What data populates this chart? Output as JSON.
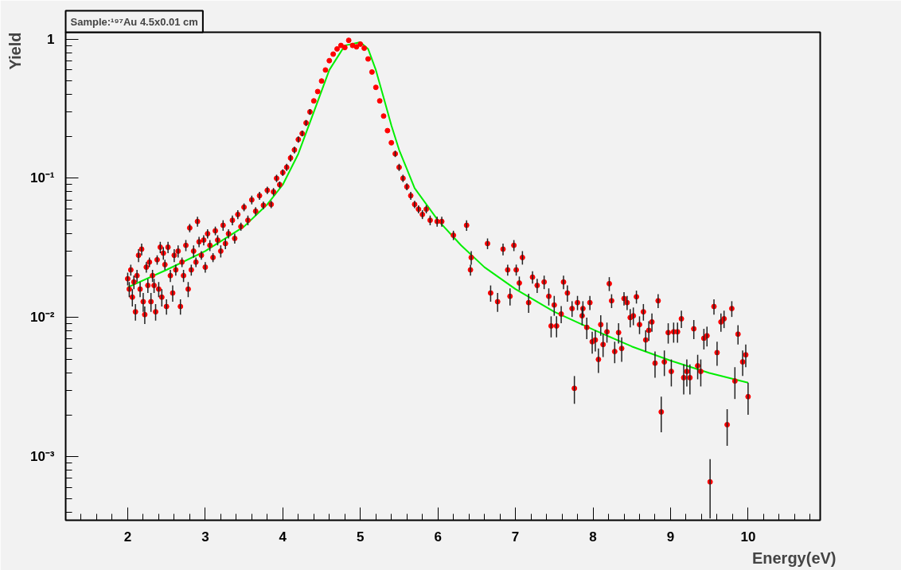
{
  "chart_data": {
    "type": "scatter",
    "title": "Sample:¹⁹⁷Au 4.5x0.01 cm",
    "xlabel": "Energy(eV)",
    "ylabel": "Yield",
    "log": "y",
    "grid": false,
    "xlim": [
      1.2,
      10.93
    ],
    "ylim": [
      0.00035,
      1.12
    ],
    "xticks": [
      2,
      3,
      4,
      5,
      6,
      7,
      8,
      9,
      10
    ],
    "yticks": [
      {
        "value": 0.001,
        "label": "10⁻³"
      },
      {
        "value": 0.01,
        "label": "10⁻²"
      },
      {
        "value": 0.1,
        "label": "10⁻¹"
      },
      1
    ],
    "series": [
      {
        "marker": "circle",
        "color": "#ff0000",
        "x": [
          2.0,
          2.02,
          2.04,
          2.06,
          2.08,
          2.1,
          2.12,
          2.14,
          2.16,
          2.18,
          2.2,
          2.22,
          2.24,
          2.26,
          2.28,
          2.3,
          2.32,
          2.34,
          2.36,
          2.38,
          2.4,
          2.42,
          2.44,
          2.46,
          2.48,
          2.5,
          2.52,
          2.55,
          2.58,
          2.6,
          2.62,
          2.65,
          2.68,
          2.7,
          2.72,
          2.75,
          2.78,
          2.8,
          2.82,
          2.85,
          2.88,
          2.9,
          2.92,
          2.95,
          2.98,
          3.0,
          3.03,
          3.06,
          3.1,
          3.13,
          3.16,
          3.2,
          3.23,
          3.26,
          3.3,
          3.35,
          3.38,
          3.42,
          3.46,
          3.5,
          3.55,
          3.6,
          3.65,
          3.7,
          3.75,
          3.8,
          3.85,
          3.88,
          3.92,
          3.96,
          4.0,
          4.05,
          4.1,
          4.15,
          4.2,
          4.25,
          4.3,
          4.35,
          4.4,
          4.45,
          4.5,
          4.55,
          4.6,
          4.65,
          4.7,
          4.75,
          4.8,
          4.85,
          4.9,
          4.95,
          5.0,
          5.05,
          5.1,
          5.15,
          5.2,
          5.25,
          5.3,
          5.35,
          5.4,
          5.45,
          5.5,
          5.55,
          5.6,
          5.65,
          5.7,
          5.75,
          5.8,
          5.85,
          5.9,
          5.99,
          6.05,
          6.2,
          6.37,
          6.43,
          6.42,
          6.64,
          6.68,
          6.77,
          6.84,
          6.9,
          6.93,
          6.98,
          7.01,
          7.05,
          7.09,
          7.17,
          7.22,
          7.28,
          7.37,
          7.43,
          7.46,
          7.53,
          7.5,
          7.59,
          7.62,
          7.67,
          7.73,
          7.76,
          7.8,
          7.86,
          7.87,
          7.92,
          7.96,
          7.99,
          8.03,
          8.07,
          8.1,
          8.13,
          8.18,
          8.21,
          8.24,
          8.28,
          8.33,
          8.37,
          8.4,
          8.44,
          8.48,
          8.52,
          8.56,
          8.6,
          8.65,
          8.68,
          8.72,
          8.76,
          8.8,
          8.84,
          8.88,
          8.92,
          8.97,
          9.01,
          9.04,
          9.09,
          9.14,
          9.17,
          9.21,
          9.25,
          9.3,
          9.35,
          9.39,
          9.43,
          9.47,
          9.51,
          9.56,
          9.6,
          9.65,
          9.69,
          9.73,
          9.79,
          9.83,
          9.87,
          9.93,
          9.97,
          10.0
        ],
        "values": [
          0.019,
          0.016,
          0.022,
          0.014,
          0.018,
          0.011,
          0.02,
          0.028,
          0.016,
          0.031,
          0.013,
          0.0105,
          0.023,
          0.017,
          0.025,
          0.013,
          0.02,
          0.017,
          0.011,
          0.026,
          0.016,
          0.032,
          0.014,
          0.029,
          0.024,
          0.012,
          0.032,
          0.02,
          0.015,
          0.028,
          0.022,
          0.03,
          0.012,
          0.025,
          0.02,
          0.033,
          0.016,
          0.044,
          0.022,
          0.03,
          0.025,
          0.049,
          0.035,
          0.028,
          0.036,
          0.023,
          0.04,
          0.033,
          0.027,
          0.042,
          0.036,
          0.03,
          0.046,
          0.034,
          0.04,
          0.05,
          0.037,
          0.055,
          0.045,
          0.062,
          0.05,
          0.07,
          0.058,
          0.075,
          0.064,
          0.082,
          0.065,
          0.08,
          0.1,
          0.09,
          0.11,
          0.12,
          0.14,
          0.16,
          0.19,
          0.21,
          0.25,
          0.3,
          0.36,
          0.42,
          0.5,
          0.6,
          0.7,
          0.78,
          0.85,
          0.9,
          0.87,
          0.98,
          0.9,
          0.88,
          0.92,
          0.86,
          0.72,
          0.58,
          0.45,
          0.36,
          0.28,
          0.22,
          0.18,
          0.15,
          0.12,
          0.1,
          0.087,
          0.075,
          0.065,
          0.06,
          0.055,
          0.06,
          0.05,
          0.049,
          0.049,
          0.039,
          0.046,
          0.027,
          0.022,
          0.034,
          0.015,
          0.013,
          0.031,
          0.022,
          0.0142,
          0.033,
          0.022,
          0.0177,
          0.027,
          0.0128,
          0.0195,
          0.017,
          0.018,
          0.0142,
          0.0087,
          0.0087,
          0.0123,
          0.0106,
          0.018,
          0.015,
          0.0116,
          0.0031,
          0.0128,
          0.0103,
          0.0116,
          0.0085,
          0.0128,
          0.0067,
          0.0069,
          0.005,
          0.0089,
          0.0064,
          0.0079,
          0.0175,
          0.0132,
          0.0057,
          0.0078,
          0.006,
          0.0137,
          0.0128,
          0.01,
          0.0103,
          0.0141,
          0.0089,
          0.011,
          0.0069,
          0.0081,
          0.0093,
          0.0047,
          0.0132,
          0.0021,
          0.0048,
          0.0078,
          0.0041,
          0.0079,
          0.0079,
          0.0098,
          0.0037,
          0.0041,
          0.0037,
          0.0083,
          0.0045,
          0.0041,
          0.0071,
          0.0074,
          0.00066,
          0.012,
          0.0056,
          0.0093,
          0.0098,
          0.0017,
          0.0116,
          0.0035,
          0.0076,
          0.0048,
          0.0054,
          0.0027
        ],
        "errors": [
          0.002,
          0.002,
          0.002,
          0.002,
          0.002,
          0.0015,
          0.002,
          0.003,
          0.002,
          0.003,
          0.002,
          0.0015,
          0.002,
          0.002,
          0.002,
          0.002,
          0.002,
          0.002,
          0.0015,
          0.002,
          0.002,
          0.003,
          0.002,
          0.003,
          0.002,
          0.0015,
          0.003,
          0.002,
          0.002,
          0.003,
          0.002,
          0.003,
          0.0015,
          0.002,
          0.002,
          0.003,
          0.002,
          0.003,
          0.002,
          0.003,
          0.002,
          0.004,
          0.003,
          0.002,
          0.003,
          0.002,
          0.003,
          0.003,
          0.002,
          0.003,
          0.003,
          0.003,
          0.004,
          0.003,
          0.003,
          0.004,
          0.003,
          0.004,
          0.003,
          0.004,
          0.004,
          0.005,
          0.004,
          0.005,
          0.004,
          0.005,
          0.004,
          0.005,
          0.006,
          0.005,
          0.006,
          0.007,
          0.008,
          0.009,
          0.01,
          0.01,
          0.012,
          0.014,
          null,
          null,
          null,
          null,
          null,
          null,
          null,
          null,
          null,
          null,
          null,
          null,
          null,
          null,
          null,
          null,
          null,
          null,
          null,
          null,
          null,
          0.008,
          0.007,
          0.006,
          0.005,
          0.005,
          0.004,
          0.004,
          0.004,
          0.004,
          0.004,
          0.004,
          0.004,
          0.003,
          0.004,
          0.003,
          0.002,
          0.003,
          0.002,
          0.002,
          0.003,
          0.002,
          0.002,
          0.003,
          0.002,
          0.002,
          0.003,
          0.002,
          0.002,
          0.002,
          0.002,
          0.002,
          0.0015,
          0.0015,
          0.002,
          0.0015,
          0.002,
          0.002,
          0.0015,
          0.0007,
          0.0015,
          0.0015,
          0.0015,
          0.0015,
          0.0015,
          0.0012,
          0.0012,
          0.001,
          0.0015,
          0.0012,
          0.0013,
          0.002,
          0.0015,
          0.001,
          0.0013,
          0.0012,
          0.0015,
          0.0015,
          0.0015,
          0.0015,
          0.0015,
          0.0013,
          0.0015,
          0.0012,
          0.0013,
          0.0014,
          0.001,
          0.0015,
          0.0006,
          0.001,
          0.0013,
          0.0009,
          0.0013,
          0.0013,
          0.0014,
          0.0009,
          0.0009,
          0.0009,
          0.0013,
          0.0009,
          0.0009,
          0.0012,
          0.0012,
          0.0003,
          0.0015,
          0.0011,
          0.0014,
          0.0014,
          0.0005,
          0.0015,
          0.0009,
          0.0012,
          0.001,
          0.001,
          0.0007
        ]
      },
      {
        "type": "line",
        "marker": "none",
        "color": "#00ee00",
        "x": [
          2,
          2.5,
          3,
          3.5,
          3.8,
          4,
          4.2,
          4.4,
          4.6,
          4.8,
          5.0,
          5.1,
          5.2,
          5.3,
          5.4,
          5.5,
          5.7,
          6,
          6.3,
          6.6,
          7,
          7.5,
          8,
          8.5,
          9,
          9.5,
          10
        ],
        "values": [
          0.0165,
          0.022,
          0.03,
          0.045,
          0.065,
          0.09,
          0.15,
          0.3,
          0.6,
          0.9,
          0.95,
          0.85,
          0.6,
          0.38,
          0.24,
          0.16,
          0.085,
          0.05,
          0.033,
          0.023,
          0.016,
          0.011,
          0.0082,
          0.0062,
          0.0049,
          0.004,
          0.0034
        ]
      }
    ]
  }
}
